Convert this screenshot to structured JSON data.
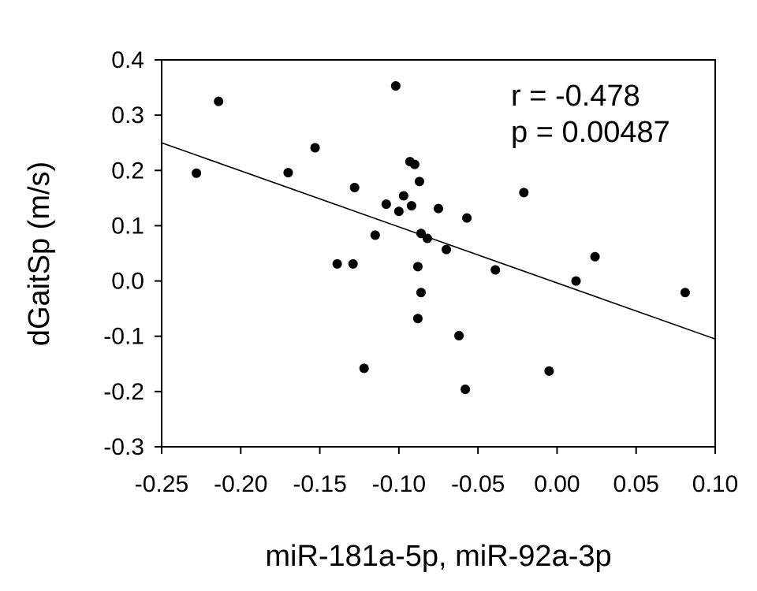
{
  "chart_data": {
    "type": "scatter",
    "title": "",
    "xlabel": "miR-181a-5p, miR-92a-3p",
    "ylabel": "dGaitSp (m/s)",
    "xlim": [
      -0.25,
      0.1
    ],
    "ylim": [
      -0.3,
      0.4
    ],
    "xticks": [
      "-0.25",
      "-0.20",
      "-0.15",
      "-0.10",
      "-0.05",
      "0.00",
      "0.05",
      "0.10"
    ],
    "yticks": [
      "0.4",
      "0.3",
      "0.2",
      "0.1",
      "0.0",
      "-0.1",
      "-0.2",
      "-0.3"
    ],
    "grid": false,
    "legend": "none",
    "annotations": [
      "r = -0.478",
      "p = 0.00487"
    ],
    "trendline": {
      "x": [
        -0.25,
        0.1
      ],
      "y": [
        0.25,
        -0.105
      ]
    },
    "points": [
      {
        "x": -0.228,
        "y": 0.195
      },
      {
        "x": -0.214,
        "y": 0.325
      },
      {
        "x": -0.17,
        "y": 0.196
      },
      {
        "x": -0.153,
        "y": 0.241
      },
      {
        "x": -0.139,
        "y": 0.031
      },
      {
        "x": -0.129,
        "y": 0.031
      },
      {
        "x": -0.128,
        "y": 0.169
      },
      {
        "x": -0.122,
        "y": -0.158
      },
      {
        "x": -0.115,
        "y": 0.083
      },
      {
        "x": -0.108,
        "y": 0.139
      },
      {
        "x": -0.102,
        "y": 0.353
      },
      {
        "x": -0.1,
        "y": 0.126
      },
      {
        "x": -0.097,
        "y": 0.154
      },
      {
        "x": -0.093,
        "y": 0.216
      },
      {
        "x": -0.092,
        "y": 0.136
      },
      {
        "x": -0.09,
        "y": 0.211
      },
      {
        "x": -0.088,
        "y": 0.026
      },
      {
        "x": -0.088,
        "y": -0.068
      },
      {
        "x": -0.087,
        "y": 0.18
      },
      {
        "x": -0.086,
        "y": 0.086
      },
      {
        "x": -0.086,
        "y": -0.021
      },
      {
        "x": -0.082,
        "y": 0.077
      },
      {
        "x": -0.075,
        "y": 0.131
      },
      {
        "x": -0.07,
        "y": 0.057
      },
      {
        "x": -0.062,
        "y": -0.099
      },
      {
        "x": -0.058,
        "y": -0.196
      },
      {
        "x": -0.057,
        "y": 0.114
      },
      {
        "x": -0.039,
        "y": 0.02
      },
      {
        "x": -0.021,
        "y": 0.16
      },
      {
        "x": -0.005,
        "y": -0.163
      },
      {
        "x": 0.012,
        "y": 0.0
      },
      {
        "x": 0.024,
        "y": 0.044
      },
      {
        "x": 0.081,
        "y": -0.021
      }
    ]
  }
}
